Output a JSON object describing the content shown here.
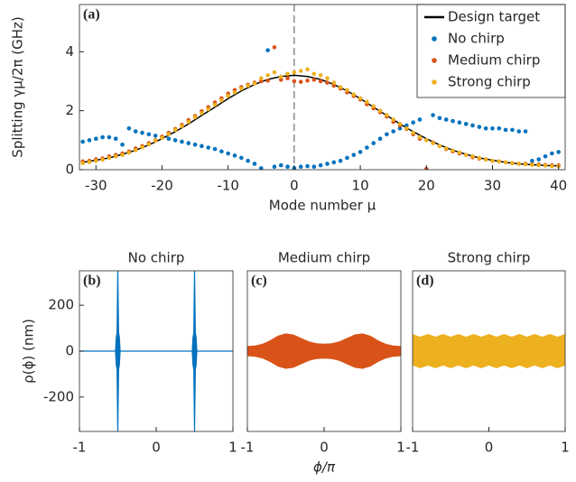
{
  "chart_data": [
    {
      "type": "scatter",
      "panel_label": "(a)",
      "xlabel": "Mode number μ",
      "ylabel": "Splitting γμ/2π (GHz)",
      "xlim": [
        -32.5,
        41
      ],
      "ylim": [
        0,
        5.6
      ],
      "xticks": [
        -30,
        -20,
        -10,
        0,
        10,
        20,
        30,
        40
      ],
      "yticks": [
        0,
        2,
        4
      ],
      "reference_line_x": 0,
      "legend": "upper right",
      "x": [
        -32,
        -31,
        -30,
        -29,
        -28,
        -27,
        -26,
        -25,
        -24,
        -23,
        -22,
        -21,
        -20,
        -19,
        -18,
        -17,
        -16,
        -15,
        -14,
        -13,
        -12,
        -11,
        -10,
        -9,
        -8,
        -7,
        -6,
        -5,
        -4,
        -3,
        -2,
        -1,
        0,
        1,
        2,
        3,
        4,
        5,
        6,
        7,
        8,
        9,
        10,
        11,
        12,
        13,
        14,
        15,
        16,
        17,
        18,
        19,
        20,
        21,
        22,
        23,
        24,
        25,
        26,
        27,
        28,
        29,
        30,
        31,
        32,
        33,
        34,
        35,
        36,
        37,
        38,
        39,
        40
      ],
      "series": [
        {
          "name": "Design target",
          "type": "line",
          "color": "#000000",
          "x": [
            -32,
            -30,
            -28,
            -26,
            -24,
            -22,
            -20,
            -18,
            -16,
            -14,
            -12,
            -10,
            -8,
            -6,
            -4,
            -2,
            0,
            2,
            4,
            6,
            8,
            10,
            12,
            14,
            16,
            18,
            20,
            22,
            24,
            26,
            28,
            30,
            32,
            34,
            36,
            38,
            40
          ],
          "values": [
            0.25,
            0.32,
            0.4,
            0.52,
            0.66,
            0.84,
            1.05,
            1.29,
            1.55,
            1.84,
            2.12,
            2.41,
            2.67,
            2.89,
            3.06,
            3.16,
            3.2,
            3.16,
            3.06,
            2.89,
            2.67,
            2.41,
            2.12,
            1.84,
            1.55,
            1.29,
            1.05,
            0.84,
            0.66,
            0.52,
            0.4,
            0.32,
            0.25,
            0.2,
            0.17,
            0.14,
            0.13
          ]
        },
        {
          "name": "No chirp",
          "color": "#0072bd",
          "values": [
            0.95,
            1.0,
            1.05,
            1.1,
            1.1,
            1.05,
            0.85,
            1.4,
            1.3,
            1.25,
            1.2,
            1.15,
            1.1,
            1.05,
            1.0,
            0.95,
            0.9,
            0.85,
            0.8,
            0.75,
            0.7,
            0.62,
            0.55,
            0.48,
            0.4,
            0.3,
            0.2,
            0.05,
            4.05,
            0.1,
            0.15,
            0.1,
            0.05,
            0.1,
            0.12,
            0.1,
            0.15,
            0.2,
            0.25,
            0.3,
            0.4,
            0.5,
            0.6,
            0.75,
            0.9,
            1.05,
            1.2,
            1.3,
            1.4,
            1.5,
            1.6,
            1.7,
            0.02,
            1.85,
            1.75,
            1.7,
            1.65,
            1.6,
            1.55,
            1.5,
            1.45,
            1.4,
            1.4,
            1.4,
            1.35,
            1.35,
            1.3,
            1.3,
            0.3,
            0.35,
            0.45,
            0.55,
            0.6
          ]
        },
        {
          "name": "Medium chirp",
          "color": "#d95319",
          "values": [
            0.28,
            0.3,
            0.35,
            0.38,
            0.45,
            0.5,
            0.55,
            0.62,
            0.72,
            0.8,
            0.9,
            1.0,
            1.12,
            1.25,
            1.38,
            1.52,
            1.68,
            1.82,
            1.98,
            2.12,
            2.28,
            2.42,
            2.58,
            2.7,
            2.8,
            2.88,
            2.95,
            3.0,
            3.02,
            4.15,
            3.05,
            3.1,
            3.0,
            2.98,
            3.02,
            3.05,
            3.0,
            2.95,
            2.85,
            2.75,
            2.62,
            2.5,
            2.38,
            2.22,
            2.08,
            1.95,
            1.8,
            1.62,
            1.5,
            1.38,
            1.2,
            1.05,
            0.02,
            0.92,
            0.8,
            0.7,
            0.62,
            0.55,
            0.5,
            0.42,
            0.38,
            0.35,
            0.3,
            0.28,
            0.25,
            0.22,
            0.2,
            0.2,
            0.18,
            0.18,
            0.16,
            0.15,
            0.15
          ]
        },
        {
          "name": "Strong chirp",
          "color": "#edb120",
          "values": [
            0.22,
            0.26,
            0.3,
            0.34,
            0.4,
            0.45,
            0.5,
            0.58,
            0.66,
            0.76,
            0.86,
            0.98,
            1.08,
            1.2,
            1.35,
            1.48,
            1.62,
            1.78,
            1.92,
            2.05,
            2.2,
            2.35,
            2.5,
            2.62,
            2.75,
            2.85,
            2.92,
            3.1,
            3.2,
            3.3,
            3.15,
            3.25,
            3.3,
            3.35,
            3.4,
            3.25,
            3.2,
            3.1,
            2.95,
            2.8,
            2.7,
            2.55,
            2.42,
            2.3,
            2.15,
            2.0,
            1.85,
            1.7,
            1.55,
            1.4,
            1.25,
            1.1,
            1.0,
            0.9,
            0.8,
            0.72,
            0.65,
            0.58,
            0.5,
            0.45,
            0.4,
            0.35,
            0.3,
            0.28,
            0.25,
            0.22,
            0.2,
            0.18,
            0.16,
            0.15,
            0.14,
            0.12,
            0.12
          ]
        }
      ]
    },
    {
      "type": "area",
      "title": "No chirp",
      "panel_label": "(b)",
      "ylabel": "ρ(ϕ) (nm)",
      "color": "#0072bd",
      "xlim": [
        -1,
        1
      ],
      "ylim": [
        -350,
        350
      ],
      "xticks": [
        -1,
        0,
        1
      ],
      "yticks": [
        -200,
        0,
        200
      ],
      "x": [
        -1,
        -0.53,
        -0.52,
        -0.51,
        -0.5,
        -0.49,
        -0.48,
        -0.47,
        0.47,
        0.48,
        0.49,
        0.5,
        0.51,
        0.52,
        0.53,
        1
      ],
      "upper": [
        0,
        0,
        60,
        80,
        350,
        80,
        60,
        0,
        0,
        60,
        80,
        350,
        80,
        60,
        0,
        0
      ],
      "lower": [
        0,
        0,
        -60,
        -80,
        -350,
        -80,
        -60,
        0,
        0,
        -60,
        -80,
        -350,
        -80,
        -60,
        0,
        0
      ]
    },
    {
      "type": "area",
      "title": "Medium chirp",
      "panel_label": "(c)",
      "xlabel": "ϕ/π",
      "color": "#d95319",
      "xlim": [
        -1,
        1
      ],
      "ylim": [
        -350,
        350
      ],
      "xticks": [
        -1,
        0,
        1
      ],
      "x": [
        -1,
        -0.9,
        -0.8,
        -0.7,
        -0.6,
        -0.5,
        -0.4,
        -0.3,
        -0.2,
        -0.1,
        0,
        0.1,
        0.2,
        0.3,
        0.4,
        0.5,
        0.6,
        0.7,
        0.8,
        0.9,
        1
      ],
      "upper": [
        20,
        22,
        30,
        45,
        65,
        75,
        70,
        55,
        40,
        32,
        30,
        32,
        40,
        55,
        70,
        75,
        65,
        45,
        30,
        22,
        20
      ],
      "lower": [
        -20,
        -22,
        -30,
        -45,
        -65,
        -75,
        -70,
        -55,
        -40,
        -32,
        -30,
        -32,
        -40,
        -55,
        -70,
        -75,
        -65,
        -45,
        -30,
        -22,
        -20
      ]
    },
    {
      "type": "area",
      "title": "Strong chirp",
      "panel_label": "(d)",
      "color": "#edb120",
      "xlim": [
        -1,
        1
      ],
      "ylim": [
        -350,
        350
      ],
      "xticks": [
        -1,
        0,
        1
      ],
      "x": [
        -1,
        -0.9,
        -0.8,
        -0.7,
        -0.6,
        -0.5,
        -0.4,
        -0.3,
        -0.2,
        -0.1,
        0,
        0.1,
        0.2,
        0.3,
        0.4,
        0.5,
        0.6,
        0.7,
        0.8,
        0.9,
        1
      ],
      "upper": [
        72,
        60,
        72,
        60,
        72,
        60,
        72,
        60,
        72,
        60,
        72,
        60,
        72,
        60,
        72,
        60,
        72,
        60,
        72,
        60,
        72
      ],
      "lower": [
        -60,
        -72,
        -60,
        -72,
        -60,
        -72,
        -60,
        -72,
        -60,
        -72,
        -60,
        -72,
        -60,
        -72,
        -60,
        -72,
        -60,
        -72,
        -60,
        -72,
        -60
      ]
    }
  ]
}
